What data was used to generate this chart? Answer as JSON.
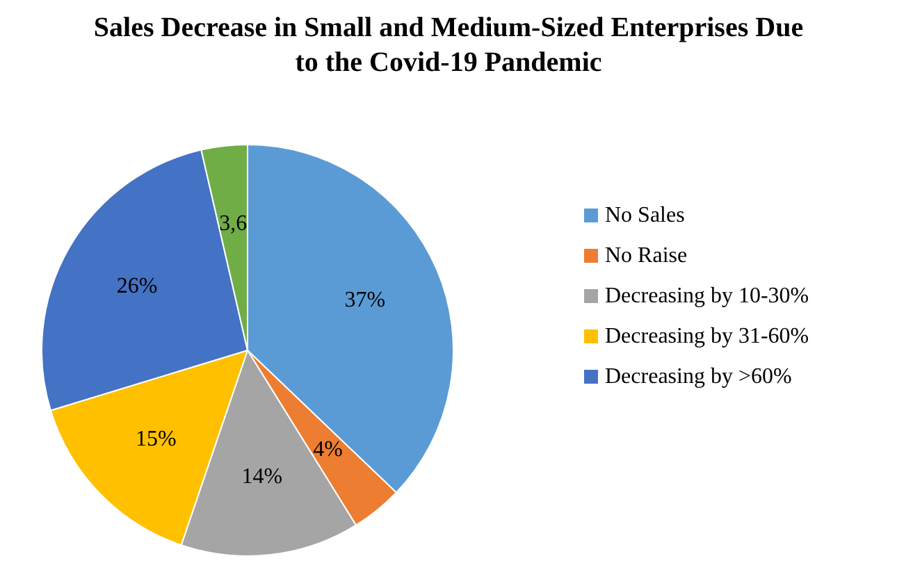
{
  "chart_data": {
    "type": "pie",
    "title": "Sales Decrease in Small and Medium-Sized Enterprises Due to the Covid-19 Pandemic",
    "categories": [
      "No Sales",
      "No Raise",
      "Decreasing by 10-30%",
      "Decreasing by 31-60%",
      "Decreasing by >60%",
      null
    ],
    "values": [
      37,
      4,
      14,
      15,
      26,
      3.6
    ],
    "colors": [
      "#5b9bd5",
      "#ed7d31",
      "#a5a5a5",
      "#ffc000",
      "#4472c4",
      "#70ad47"
    ],
    "value_labels": [
      "37%",
      "4%",
      "14%",
      "15%",
      "26%",
      "3,6"
    ],
    "legend": "right"
  }
}
